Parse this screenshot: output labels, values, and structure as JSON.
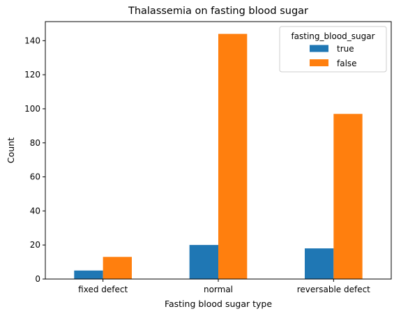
{
  "chart_data": {
    "type": "bar",
    "title": "Thalassemia on fasting blood sugar",
    "xlabel": "Fasting blood sugar type",
    "ylabel": "Count",
    "categories": [
      "fixed defect",
      "normal",
      "reversable defect"
    ],
    "series": [
      {
        "name": "true",
        "values": [
          5,
          20,
          18
        ],
        "color": "#1f77b4"
      },
      {
        "name": "false",
        "values": [
          13,
          144,
          97
        ],
        "color": "#ff7f0e"
      }
    ],
    "ylim": [
      0,
      151.2
    ],
    "yticks": [
      0,
      20,
      40,
      60,
      80,
      100,
      120,
      140
    ],
    "grid": false,
    "legend": {
      "title": "fasting_blood_sugar",
      "placement": "top-right"
    }
  }
}
